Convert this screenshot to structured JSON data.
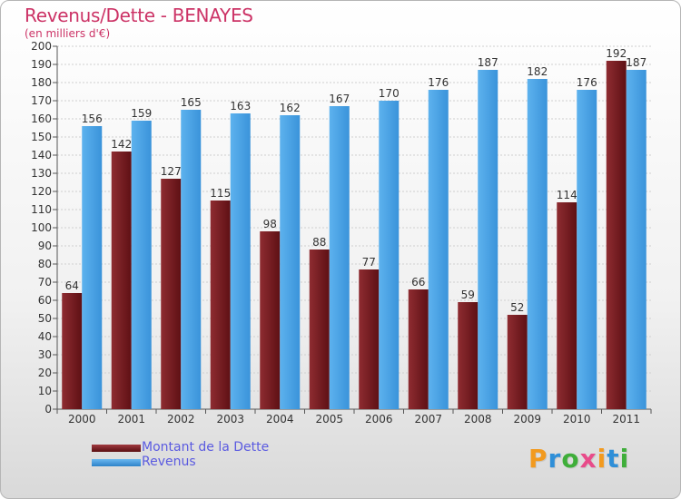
{
  "chart_data": {
    "type": "bar",
    "title": "Revenus/Dette - BENAYES",
    "subtitle": "(en milliers d'€)",
    "categories": [
      "2000",
      "2001",
      "2002",
      "2003",
      "2004",
      "2005",
      "2006",
      "2007",
      "2008",
      "2009",
      "2010",
      "2011"
    ],
    "series": [
      {
        "name": "Montant de la Dette",
        "color": "#7a1f24",
        "values": [
          64,
          142,
          127,
          115,
          98,
          88,
          77,
          66,
          59,
          52,
          114,
          192
        ]
      },
      {
        "name": "Revenus",
        "color": "#4aa3e6",
        "values": [
          156,
          159,
          165,
          163,
          162,
          167,
          170,
          176,
          187,
          182,
          176,
          187
        ]
      }
    ],
    "ylim": [
      0,
      200
    ],
    "ytick_step": 10,
    "grid": true,
    "legend_position": "bottom-left"
  },
  "logo": {
    "letters": [
      "P",
      "r",
      "o",
      "x",
      "i",
      "t",
      "i"
    ],
    "colors": [
      "#f29a1f",
      "#2f8fd8",
      "#3fae3a",
      "#e84b8a",
      "#f29a1f",
      "#2f8fd8",
      "#3fae3a"
    ]
  }
}
